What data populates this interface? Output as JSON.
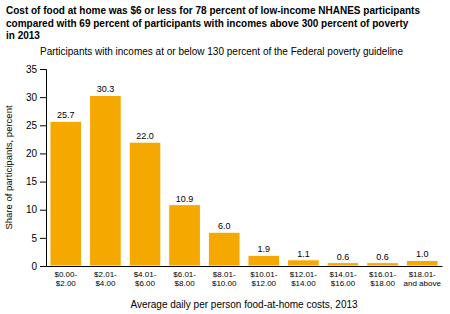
{
  "chart_data": {
    "type": "bar",
    "title": "Cost of food at home was $6 or less for 78 percent of low-income NHANES participants\ncompared with 69 percent of participants with incomes above 300 percent of poverty\nin 2013",
    "subtitle": "Participants with incomes at or below 130 percent of the Federal poverty guideline",
    "ylabel": "Share of participants, percent",
    "xlabel": "Average daily per person food-at-home costs, 2013",
    "categories": [
      "$0.00-\n$2.00",
      "$2.01-\n$4.00",
      "$4.01-\n$6.00",
      "$6.01-\n$8.00",
      "$8.01-\n$10.00",
      "$10.01-\n$12.00",
      "$12.01-\n$14.00",
      "$14.01-\n$16.00",
      "$16.01-\n$18.00",
      "$18.01-\nand above"
    ],
    "values": [
      25.7,
      30.3,
      22.0,
      10.9,
      6.0,
      1.9,
      1.1,
      0.6,
      0.6,
      1.0
    ],
    "value_labels": [
      "25.7",
      "30.3",
      "22.0",
      "10.9",
      "6.0",
      "1.9",
      "1.1",
      "0.6",
      "0.6",
      "1.0"
    ],
    "data_labels": true,
    "color": "#F5A800",
    "ylim": [
      0,
      35
    ],
    "yticks": [
      0,
      5,
      10,
      15,
      20,
      25,
      30,
      35
    ],
    "grid": false
  }
}
